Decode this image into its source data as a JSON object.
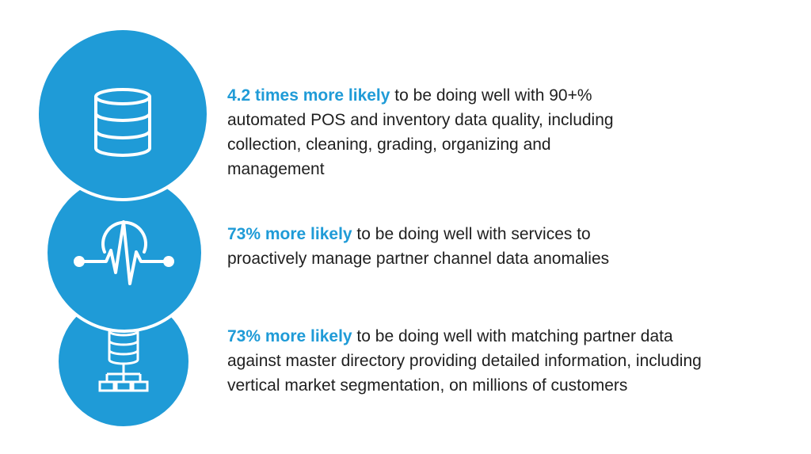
{
  "items": [
    {
      "icon": "database-icon",
      "highlight": "4.2 times more likely",
      "lines": [
        " to be doing well with 90+%",
        "automated POS and inventory data quality, including",
        "collection, cleaning, grading, organizing and",
        "management"
      ]
    },
    {
      "icon": "heartbeat-monitor-icon",
      "highlight": "73% more likely",
      "lines": [
        " to be doing well with services to",
        "proactively manage partner channel data anomalies"
      ]
    },
    {
      "icon": "database-hierarchy-icon",
      "highlight": "73% more likely",
      "lines": [
        " to be doing well with matching partner data",
        "against master directory providing detailed information, including",
        "vertical market segmentation, on millions of customers"
      ]
    }
  ],
  "colors": {
    "accent": "#1f9bd7",
    "text": "#1f1f1f"
  }
}
